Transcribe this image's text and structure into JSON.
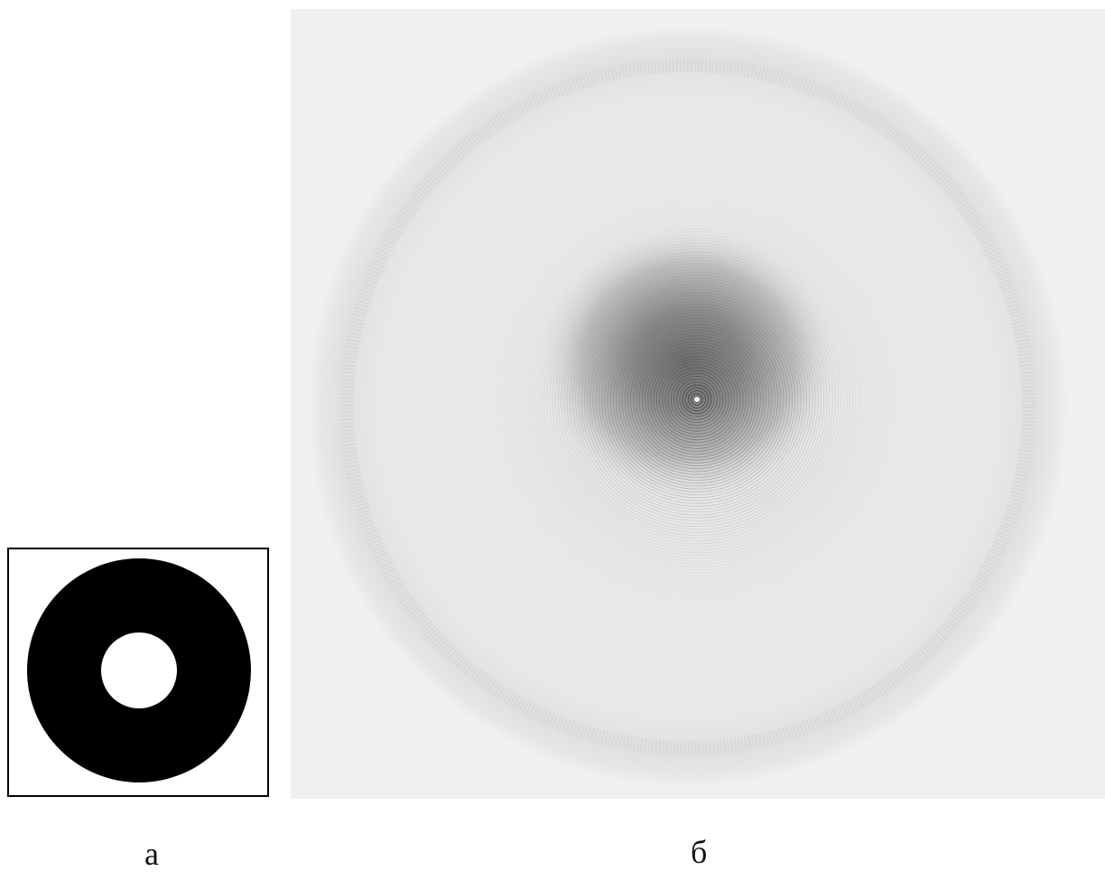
{
  "figure": {
    "panels": [
      {
        "label": "а",
        "shape": "annulus",
        "fill_color": "#000000",
        "background_color": "#ffffff"
      },
      {
        "label": "б",
        "shape": "diffraction-rings",
        "background_color": "#f0f0f0"
      }
    ]
  }
}
